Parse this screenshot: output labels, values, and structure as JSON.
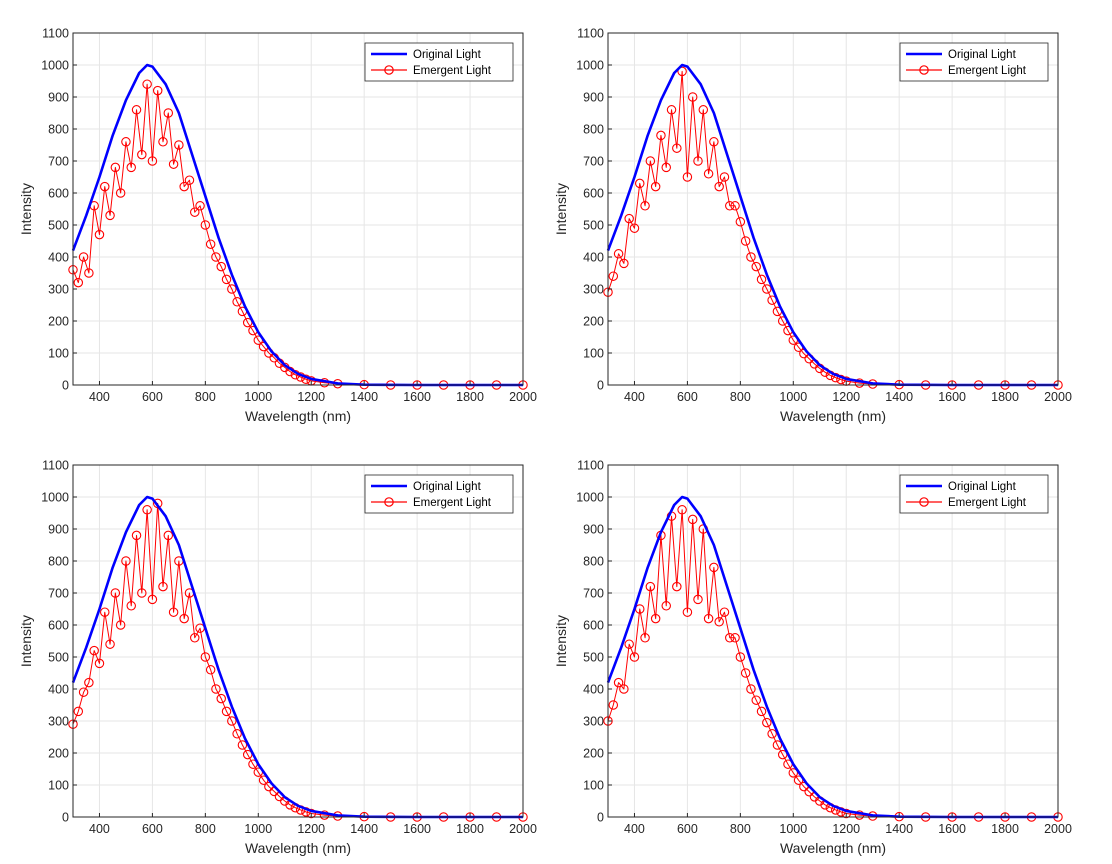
{
  "chart_data": [
    {
      "type": "line",
      "xlabel": "Wavelength (nm)",
      "ylabel": "Intensity",
      "xlim": [
        300,
        2000
      ],
      "ylim": [
        0,
        1100
      ],
      "xticks": [
        400,
        600,
        800,
        1000,
        1200,
        1400,
        1600,
        1800,
        2000
      ],
      "yticks": [
        0,
        100,
        200,
        300,
        400,
        500,
        600,
        700,
        800,
        900,
        1000,
        1100
      ],
      "grid": true,
      "legend_position": "top-right",
      "series": [
        {
          "name": "Original Light",
          "color": "#0000ff",
          "style": "line",
          "x": [
            300,
            350,
            400,
            450,
            500,
            550,
            580,
            600,
            650,
            700,
            750,
            800,
            850,
            900,
            950,
            1000,
            1050,
            1100,
            1150,
            1200,
            1300,
            1400,
            1600,
            1800,
            2000
          ],
          "y": [
            420,
            530,
            650,
            780,
            890,
            975,
            1000,
            995,
            940,
            850,
            720,
            590,
            460,
            345,
            245,
            165,
            105,
            62,
            35,
            19,
            5,
            1,
            0,
            0,
            0
          ]
        },
        {
          "name": "Emergent Light",
          "color": "#ff0000",
          "style": "line-circle-markers",
          "x": [
            300,
            320,
            340,
            360,
            380,
            400,
            420,
            440,
            460,
            480,
            500,
            520,
            540,
            560,
            580,
            600,
            620,
            640,
            660,
            680,
            700,
            720,
            740,
            760,
            780,
            800,
            820,
            840,
            860,
            880,
            900,
            920,
            940,
            960,
            980,
            1000,
            1020,
            1040,
            1060,
            1080,
            1100,
            1120,
            1140,
            1160,
            1180,
            1200,
            1250,
            1300,
            1400,
            1500,
            1600,
            1700,
            1800,
            1900,
            2000
          ],
          "y": [
            360,
            320,
            400,
            350,
            560,
            470,
            620,
            530,
            680,
            600,
            760,
            680,
            860,
            720,
            940,
            700,
            920,
            760,
            850,
            690,
            750,
            620,
            640,
            540,
            560,
            500,
            440,
            400,
            370,
            330,
            300,
            260,
            230,
            195,
            170,
            140,
            120,
            100,
            85,
            68,
            55,
            42,
            32,
            25,
            18,
            13,
            7,
            4,
            1,
            0,
            0,
            0,
            0,
            0,
            0
          ]
        }
      ]
    },
    {
      "type": "line",
      "xlabel": "Wavelength (nm)",
      "ylabel": "Intensity",
      "xlim": [
        300,
        2000
      ],
      "ylim": [
        0,
        1100
      ],
      "xticks": [
        400,
        600,
        800,
        1000,
        1200,
        1400,
        1600,
        1800,
        2000
      ],
      "yticks": [
        0,
        100,
        200,
        300,
        400,
        500,
        600,
        700,
        800,
        900,
        1000,
        1100
      ],
      "grid": true,
      "legend_position": "top-right",
      "series": [
        {
          "name": "Original Light",
          "color": "#0000ff",
          "style": "line",
          "x": [
            300,
            350,
            400,
            450,
            500,
            550,
            580,
            600,
            650,
            700,
            750,
            800,
            850,
            900,
            950,
            1000,
            1050,
            1100,
            1150,
            1200,
            1300,
            1400,
            1600,
            1800,
            2000
          ],
          "y": [
            420,
            530,
            650,
            780,
            890,
            975,
            1000,
            995,
            940,
            850,
            720,
            590,
            460,
            345,
            245,
            165,
            105,
            62,
            35,
            19,
            5,
            1,
            0,
            0,
            0
          ]
        },
        {
          "name": "Emergent Light",
          "color": "#ff0000",
          "style": "line-circle-markers",
          "x": [
            300,
            320,
            340,
            360,
            380,
            400,
            420,
            440,
            460,
            480,
            500,
            520,
            540,
            560,
            580,
            600,
            620,
            640,
            660,
            680,
            700,
            720,
            740,
            760,
            780,
            800,
            820,
            840,
            860,
            880,
            900,
            920,
            940,
            960,
            980,
            1000,
            1020,
            1040,
            1060,
            1080,
            1100,
            1120,
            1140,
            1160,
            1180,
            1200,
            1250,
            1300,
            1400,
            1500,
            1600,
            1700,
            1800,
            1900,
            2000
          ],
          "y": [
            290,
            340,
            410,
            380,
            520,
            490,
            630,
            560,
            700,
            620,
            780,
            680,
            860,
            740,
            980,
            650,
            900,
            700,
            860,
            660,
            760,
            620,
            650,
            560,
            560,
            510,
            450,
            400,
            370,
            330,
            300,
            265,
            230,
            200,
            170,
            140,
            118,
            98,
            82,
            66,
            52,
            40,
            30,
            23,
            17,
            12,
            6,
            3,
            1,
            0,
            0,
            0,
            0,
            0,
            0
          ]
        }
      ]
    },
    {
      "type": "line",
      "xlabel": "Wavelength (nm)",
      "ylabel": "Intensity",
      "xlim": [
        300,
        2000
      ],
      "ylim": [
        0,
        1100
      ],
      "xticks": [
        400,
        600,
        800,
        1000,
        1200,
        1400,
        1600,
        1800,
        2000
      ],
      "yticks": [
        0,
        100,
        200,
        300,
        400,
        500,
        600,
        700,
        800,
        900,
        1000,
        1100
      ],
      "grid": true,
      "legend_position": "top-right",
      "series": [
        {
          "name": "Original Light",
          "color": "#0000ff",
          "style": "line",
          "x": [
            300,
            350,
            400,
            450,
            500,
            550,
            580,
            600,
            650,
            700,
            750,
            800,
            850,
            900,
            950,
            1000,
            1050,
            1100,
            1150,
            1200,
            1300,
            1400,
            1600,
            1800,
            2000
          ],
          "y": [
            420,
            530,
            650,
            780,
            890,
            975,
            1000,
            995,
            940,
            850,
            720,
            590,
            460,
            345,
            245,
            165,
            105,
            62,
            35,
            19,
            5,
            1,
            0,
            0,
            0
          ]
        },
        {
          "name": "Emergent Light",
          "color": "#ff0000",
          "style": "line-circle-markers",
          "x": [
            300,
            320,
            340,
            360,
            380,
            400,
            420,
            440,
            460,
            480,
            500,
            520,
            540,
            560,
            580,
            600,
            620,
            640,
            660,
            680,
            700,
            720,
            740,
            760,
            780,
            800,
            820,
            840,
            860,
            880,
            900,
            920,
            940,
            960,
            980,
            1000,
            1020,
            1040,
            1060,
            1080,
            1100,
            1120,
            1140,
            1160,
            1180,
            1200,
            1250,
            1300,
            1400,
            1500,
            1600,
            1700,
            1800,
            1900,
            2000
          ],
          "y": [
            290,
            330,
            390,
            420,
            520,
            480,
            640,
            540,
            700,
            600,
            800,
            660,
            880,
            700,
            960,
            680,
            980,
            720,
            880,
            640,
            800,
            620,
            700,
            560,
            590,
            500,
            460,
            400,
            370,
            330,
            300,
            260,
            225,
            195,
            165,
            140,
            115,
            95,
            80,
            64,
            50,
            38,
            29,
            22,
            16,
            11,
            6,
            3,
            1,
            0,
            0,
            0,
            0,
            0,
            0
          ]
        }
      ]
    },
    {
      "type": "line",
      "xlabel": "Wavelength (nm)",
      "ylabel": "Intensity",
      "xlim": [
        300,
        2000
      ],
      "ylim": [
        0,
        1100
      ],
      "xticks": [
        400,
        600,
        800,
        1000,
        1200,
        1400,
        1600,
        1800,
        2000
      ],
      "yticks": [
        0,
        100,
        200,
        300,
        400,
        500,
        600,
        700,
        800,
        900,
        1000,
        1100
      ],
      "grid": true,
      "legend_position": "top-right",
      "series": [
        {
          "name": "Original Light",
          "color": "#0000ff",
          "style": "line",
          "x": [
            300,
            350,
            400,
            450,
            500,
            550,
            580,
            600,
            650,
            700,
            750,
            800,
            850,
            900,
            950,
            1000,
            1050,
            1100,
            1150,
            1200,
            1300,
            1400,
            1600,
            1800,
            2000
          ],
          "y": [
            420,
            530,
            650,
            780,
            890,
            975,
            1000,
            995,
            940,
            850,
            720,
            590,
            460,
            345,
            245,
            165,
            105,
            62,
            35,
            19,
            5,
            1,
            0,
            0,
            0
          ]
        },
        {
          "name": "Emergent Light",
          "color": "#ff0000",
          "style": "line-circle-markers",
          "x": [
            300,
            320,
            340,
            360,
            380,
            400,
            420,
            440,
            460,
            480,
            500,
            520,
            540,
            560,
            580,
            600,
            620,
            640,
            660,
            680,
            700,
            720,
            740,
            760,
            780,
            800,
            820,
            840,
            860,
            880,
            900,
            920,
            940,
            960,
            980,
            1000,
            1020,
            1040,
            1060,
            1080,
            1100,
            1120,
            1140,
            1160,
            1180,
            1200,
            1250,
            1300,
            1400,
            1500,
            1600,
            1700,
            1800,
            1900,
            2000
          ],
          "y": [
            300,
            350,
            420,
            400,
            540,
            500,
            650,
            560,
            720,
            620,
            880,
            660,
            940,
            720,
            960,
            640,
            930,
            680,
            900,
            620,
            780,
            610,
            640,
            560,
            560,
            500,
            450,
            400,
            365,
            330,
            295,
            260,
            225,
            195,
            165,
            138,
            115,
            95,
            79,
            63,
            50,
            38,
            29,
            22,
            16,
            11,
            6,
            3,
            1,
            0,
            0,
            0,
            0,
            0,
            0
          ]
        }
      ]
    }
  ]
}
